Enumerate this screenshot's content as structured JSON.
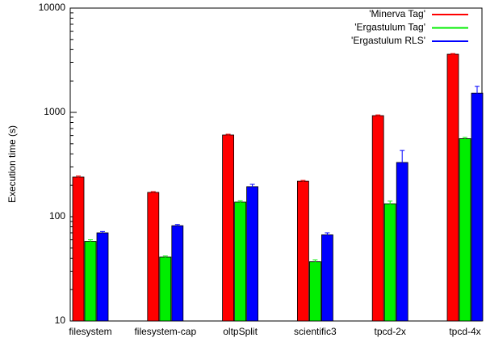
{
  "chart_data": {
    "type": "bar",
    "y_label": "Execution time (s)",
    "categories": [
      "filesystem",
      "filesystem-cap",
      "oltpSplit",
      "scientific3",
      "tpcd-2x",
      "tpcd-4x"
    ],
    "series": [
      {
        "name": "'Minerva Tag'",
        "color": "#ff0000",
        "values": [
          240,
          171,
          607,
          219,
          931,
          3614
        ],
        "errors": [
          5,
          3,
          10,
          4,
          15,
          50
        ]
      },
      {
        "name": "'Ergastulum Tag'",
        "color": "#00ee00",
        "values": [
          58,
          41,
          138,
          37,
          133,
          560
        ],
        "errors": [
          2,
          1,
          4,
          1.5,
          8,
          15
        ]
      },
      {
        "name": "'Ergastulum RLS'",
        "color": "#0000ff",
        "values": [
          70,
          82,
          194,
          67,
          331,
          1530
        ],
        "errors": [
          2,
          2,
          10,
          3,
          100,
          250
        ]
      }
    ],
    "ylim": [
      10,
      10000
    ],
    "yticks": [
      10,
      100,
      1000,
      10000
    ],
    "log_scale": true,
    "grid": false,
    "legend": "top-right"
  }
}
